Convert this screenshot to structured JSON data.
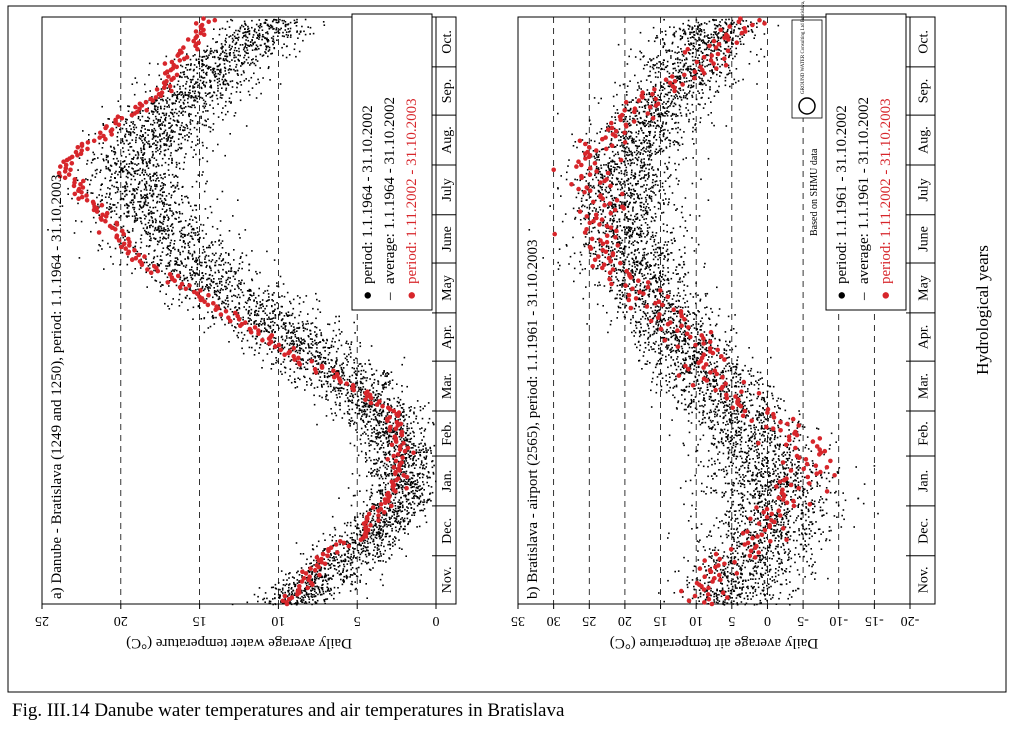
{
  "caption": "Fig. III.14  Danube water temperatures and air temperatures in Bratislava",
  "xlabel": "Hydrological years",
  "months": [
    "Nov.",
    "Dec.",
    "Jan.",
    "Feb.",
    "Mar.",
    "Apr.",
    "May",
    "June",
    "July",
    "Aug.",
    "Sep.",
    "Oct."
  ],
  "watermark": {
    "text": "Based on SHMU data",
    "logo_text": "GROUND WATER Consulting Ltd Bratislava, SLOVAKIA"
  },
  "colors": {
    "historic": "#000000",
    "recent": "#d7262b",
    "grid": "#000000"
  },
  "chart_data": [
    {
      "id": "a",
      "type": "scatter",
      "title": "a) Danube - Bratislava (1249 and 1250), period: 1.1.1964 - 31.10.2003",
      "ylabel": "Daily average water temperature (°C)",
      "ylim": [
        0,
        25
      ],
      "yticks": [
        "0",
        "5",
        "10",
        "15",
        "20",
        "25"
      ],
      "grid": "dashed horizontal at 5, 10, 15, 20",
      "legend": [
        {
          "symbol": "●",
          "text": "period: 1.1.1964 - 31.10.2002",
          "color": "#000000"
        },
        {
          "symbol": "–",
          "text": "average: 1.1.1964 - 31.10.2002",
          "color": "#000000"
        },
        {
          "symbol": "●",
          "text": "period: 1.11.2002 - 31.10.2003",
          "color": "#d7262b"
        }
      ],
      "series": [
        {
          "name": "period: 1.1.1964 - 31.10.2002",
          "kind": "points-envelope",
          "x": [
            "Nov. 1",
            "Dec. 1",
            "Jan. 1",
            "Feb. 1",
            "Mar. 1",
            "Apr. 1",
            "May 1",
            "June 1",
            "July 1",
            "Aug. 1",
            "Sep. 1",
            "Oct. 1",
            "Oct. 31"
          ],
          "mean": [
            9.5,
            5.5,
            2.5,
            2.0,
            3.5,
            7.0,
            11.5,
            15.5,
            18.5,
            19.0,
            17.0,
            14.0,
            10.0
          ],
          "spread": [
            1.6,
            1.8,
            1.5,
            1.5,
            1.8,
            2.2,
            2.5,
            2.4,
            2.3,
            2.2,
            2.2,
            2.0,
            1.8
          ]
        },
        {
          "name": "period: 1.11.2002 - 31.10.2003",
          "kind": "points",
          "x": [
            "Nov. 1",
            "Nov. 15",
            "Dec. 1",
            "Dec. 15",
            "Jan. 1",
            "Jan. 15",
            "Feb. 1",
            "Feb. 15",
            "Mar. 1",
            "Mar. 15",
            "Apr. 1",
            "Apr. 15",
            "May 1",
            "May 15",
            "June 1",
            "June 15",
            "July 1",
            "July 15",
            "Aug. 1",
            "Aug. 15",
            "Sep. 1",
            "Sep. 15",
            "Oct. 1",
            "Oct. 15",
            "Oct. 31"
          ],
          "values": [
            9.5,
            8.2,
            7.0,
            4.5,
            3.5,
            2.5,
            2.2,
            2.5,
            3.0,
            5.0,
            8.5,
            10.5,
            13.5,
            15.5,
            18.5,
            20.0,
            21.0,
            22.5,
            23.5,
            22.0,
            19.5,
            17.5,
            16.5,
            15.5,
            14.5
          ]
        }
      ]
    },
    {
      "id": "b",
      "type": "scatter",
      "title": "b) Bratislava - airport (2565), period: 1.1.1961 - 31.10.2003",
      "ylabel": "Daily average air temperature (°C)",
      "ylim": [
        -20,
        35
      ],
      "yticks": [
        "-20",
        "-15",
        "-10",
        "-5",
        "0",
        "5",
        "10",
        "15",
        "20",
        "25",
        "30",
        "35"
      ],
      "grid": "dashed horizontal at -15, -10, -5, 0, 5, 10, 15, 20, 25, 30",
      "legend": [
        {
          "symbol": "●",
          "text": "period: 1.1.1961 - 31.10.2002",
          "color": "#000000"
        },
        {
          "symbol": "–",
          "text": "average: 1.1.1961 - 31.10.2002",
          "color": "#000000"
        },
        {
          "symbol": "●",
          "text": "period: 1.11.2002 - 31.10.2003",
          "color": "#d7262b"
        }
      ],
      "series": [
        {
          "name": "period: 1.1.1961 - 31.10.2002",
          "kind": "points-envelope",
          "x": [
            "Nov. 1",
            "Dec. 1",
            "Jan. 1",
            "Feb. 1",
            "Mar. 1",
            "Apr. 1",
            "May 1",
            "June 1",
            "July 1",
            "Aug. 1",
            "Sep. 1",
            "Oct. 1",
            "Oct. 31"
          ],
          "mean": [
            6.0,
            2.0,
            -1.0,
            0.5,
            4.5,
            10.0,
            15.0,
            18.5,
            20.5,
            20.0,
            16.0,
            11.0,
            7.0
          ],
          "spread": [
            4.5,
            5.5,
            6.0,
            5.5,
            5.0,
            4.5,
            4.5,
            4.5,
            4.5,
            4.5,
            4.5,
            4.5,
            4.5
          ]
        },
        {
          "name": "period: 1.11.2002 - 31.10.2003",
          "kind": "points",
          "x": [
            "Nov. 1",
            "Nov. 15",
            "Dec. 1",
            "Dec. 15",
            "Jan. 1",
            "Jan. 15",
            "Feb. 1",
            "Feb. 15",
            "Mar. 1",
            "Mar. 15",
            "Apr. 1",
            "Apr. 15",
            "May 1",
            "May 15",
            "June 1",
            "June 15",
            "July 1",
            "July 15",
            "Aug. 1",
            "Aug. 15",
            "Sep. 1",
            "Sep. 15",
            "Oct. 1",
            "Oct. 15",
            "Oct. 31"
          ],
          "values": [
            7.5,
            9.0,
            4.5,
            1.0,
            -1.0,
            -4.0,
            -5.0,
            -3.5,
            2.5,
            6.0,
            8.5,
            9.5,
            15.5,
            18.0,
            22.0,
            23.5,
            22.5,
            24.0,
            25.0,
            22.5,
            18.5,
            15.0,
            9.0,
            6.0,
            3.0
          ]
        }
      ]
    }
  ]
}
